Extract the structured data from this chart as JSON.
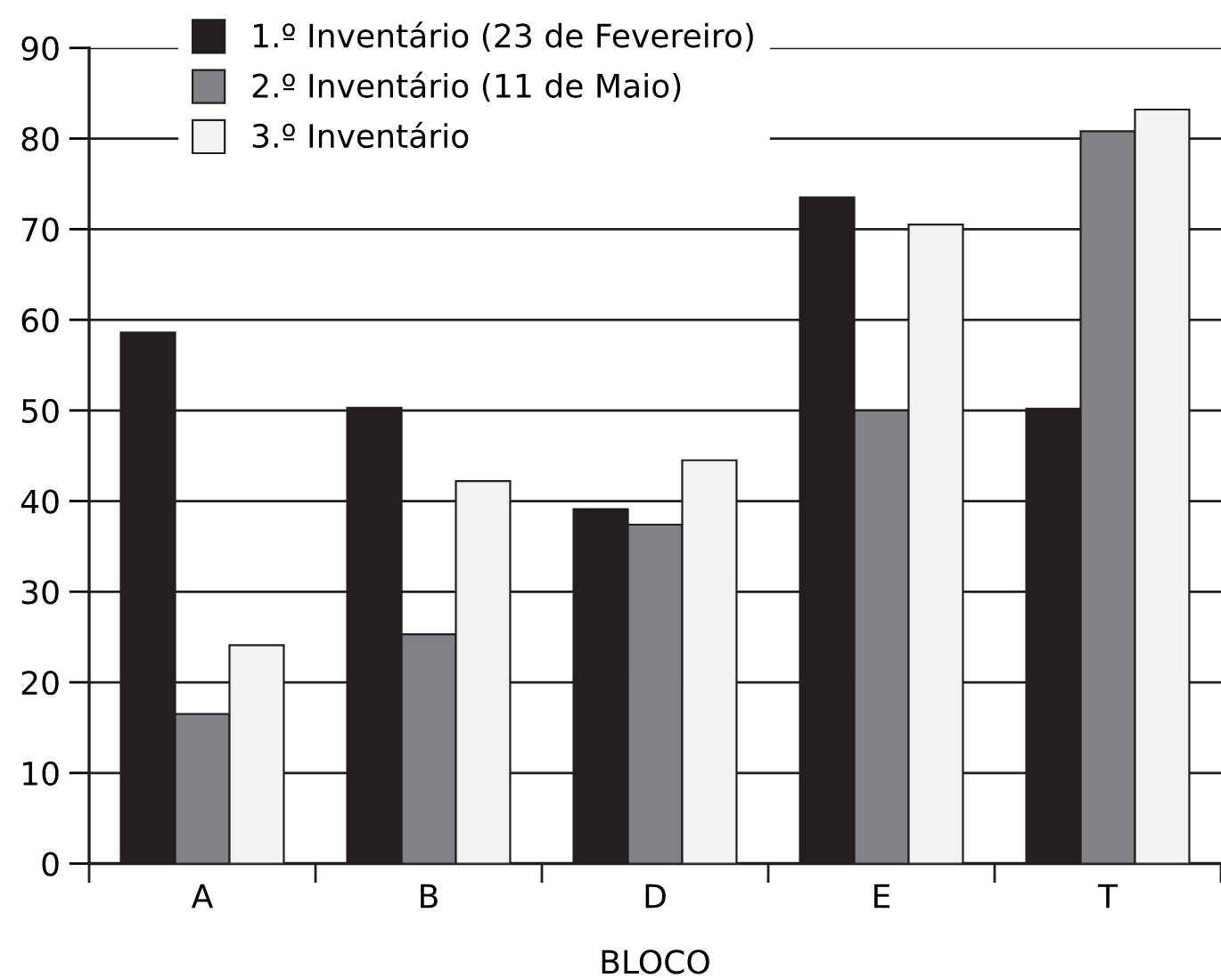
{
  "chart_data": {
    "type": "bar",
    "xlabel": "BLOCO",
    "categories": [
      "A",
      "B",
      "D",
      "E",
      "T"
    ],
    "series": [
      {
        "name": "1.º Inventário (23 de Fevereiro)",
        "color": "#231f20",
        "values": [
          58.6,
          50.3,
          39.1,
          73.5,
          50.2
        ]
      },
      {
        "name": "2.º Inventário (11 de Maio)",
        "color": "#808285",
        "values": [
          16.5,
          25.3,
          37.4,
          50.0,
          80.8
        ]
      },
      {
        "name": "3.º Inventário",
        "color": "#f1f2f2",
        "values": [
          24.1,
          42.2,
          44.5,
          70.5,
          83.2
        ]
      }
    ],
    "ylim": [
      0,
      90
    ],
    "yticks": [
      0,
      10,
      20,
      30,
      40,
      50,
      60,
      70,
      80,
      90
    ],
    "grid": "y",
    "legend": "top left"
  }
}
